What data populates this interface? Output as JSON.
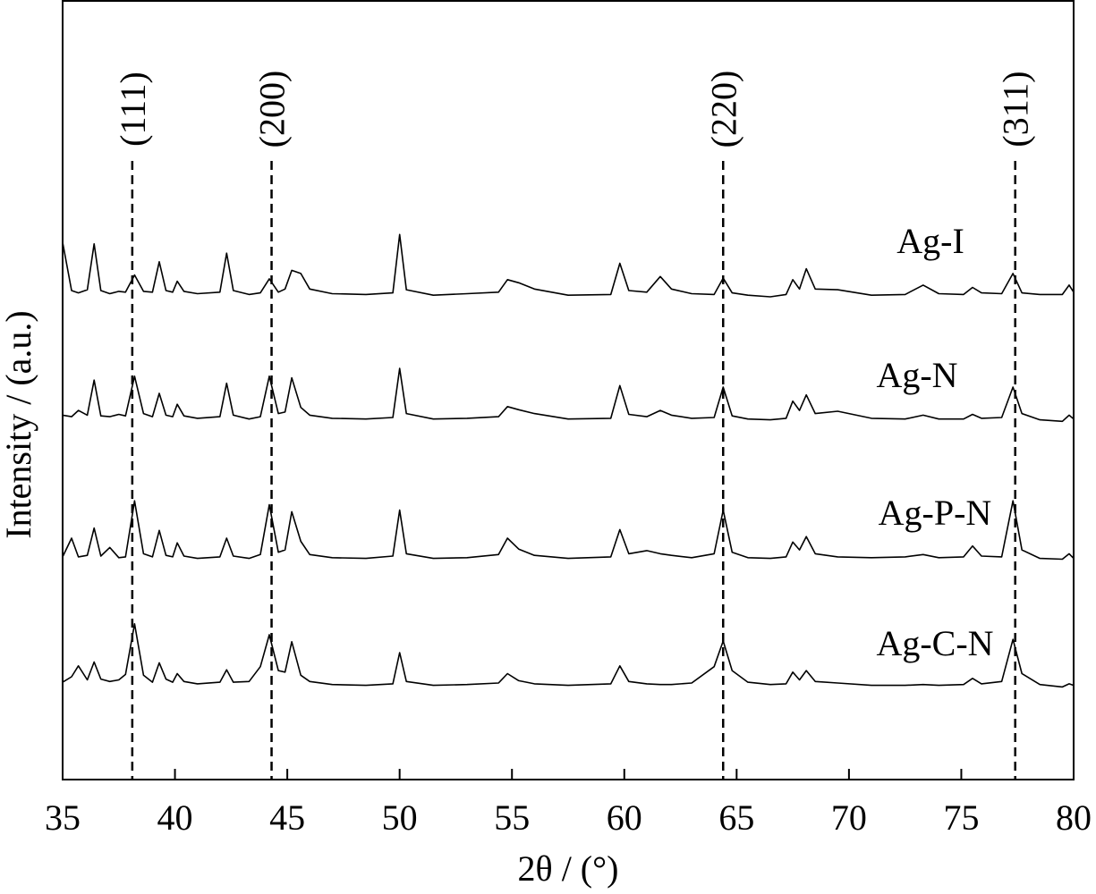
{
  "chart_data": {
    "type": "line",
    "xlabel": "2θ / (°)",
    "ylabel": "Intensity / (a.u.)",
    "xlim": [
      35,
      80
    ],
    "xticks": [
      35,
      40,
      45,
      50,
      55,
      60,
      65,
      70,
      75,
      80
    ],
    "ylim": [
      0,
      100
    ],
    "reference_lines": [
      {
        "value": 38.1,
        "label": "(111)"
      },
      {
        "value": 44.3,
        "label": "(200)"
      },
      {
        "value": 64.4,
        "label": "(220)"
      },
      {
        "value": 77.4,
        "label": "(311)"
      }
    ],
    "x": [
      35,
      35.4,
      35.7,
      36.1,
      36.4,
      36.7,
      37.1,
      37.5,
      37.8,
      38.2,
      38.6,
      39.0,
      39.3,
      39.6,
      39.9,
      40.1,
      40.4,
      41.0,
      42.0,
      42.3,
      42.6,
      43.3,
      43.8,
      44.2,
      44.6,
      44.9,
      45.2,
      45.6,
      46.0,
      47.0,
      48.5,
      49.7,
      50.0,
      50.3,
      51.5,
      53.0,
      54.4,
      54.8,
      55.3,
      56.0,
      57.5,
      59.4,
      59.8,
      60.2,
      61.0,
      61.6,
      62.1,
      63.0,
      64.0,
      64.4,
      64.8,
      65.5,
      66.5,
      67.2,
      67.5,
      67.8,
      68.1,
      68.5,
      69.5,
      71.0,
      72.5,
      73.3,
      74.0,
      75.1,
      75.5,
      75.9,
      76.8,
      77.3,
      77.7,
      78.5,
      79.5,
      79.8,
      80.0
    ],
    "series": [
      {
        "name": "Ag-I",
        "color": "#000000",
        "values": [
          69.0,
          62.8,
          62.5,
          62.9,
          68.8,
          62.8,
          62.4,
          62.7,
          62.6,
          64.8,
          62.7,
          62.6,
          66.5,
          62.8,
          62.6,
          64.0,
          62.7,
          62.4,
          62.6,
          67.6,
          62.8,
          62.3,
          62.5,
          64.3,
          62.6,
          63.0,
          65.4,
          65.0,
          63.0,
          62.4,
          62.3,
          62.5,
          70.0,
          62.9,
          62.2,
          62.4,
          62.6,
          64.2,
          63.8,
          63.0,
          62.2,
          62.3,
          66.3,
          62.8,
          62.6,
          64.6,
          63.0,
          62.4,
          62.3,
          64.4,
          62.5,
          62.2,
          62.0,
          62.3,
          64.2,
          63.0,
          65.6,
          63.0,
          62.9,
          62.2,
          62.3,
          63.5,
          62.4,
          62.3,
          63.2,
          62.5,
          62.4,
          65.0,
          62.5,
          62.3,
          62.3,
          63.5,
          62.6
        ]
      },
      {
        "name": "Ag-N",
        "color": "#000000",
        "values": [
          46.8,
          46.6,
          47.4,
          46.8,
          51.3,
          46.7,
          46.6,
          46.9,
          46.7,
          51.8,
          47.0,
          46.6,
          49.6,
          46.8,
          46.6,
          48.2,
          46.7,
          46.4,
          46.6,
          50.9,
          46.8,
          46.3,
          46.6,
          51.8,
          47.0,
          47.2,
          51.6,
          47.8,
          46.8,
          46.4,
          46.3,
          46.5,
          52.8,
          47.0,
          46.3,
          46.4,
          46.6,
          47.9,
          47.5,
          47.0,
          46.3,
          46.4,
          50.6,
          46.9,
          46.6,
          47.4,
          46.8,
          46.4,
          46.5,
          50.4,
          46.7,
          46.3,
          46.2,
          46.4,
          48.6,
          47.4,
          49.4,
          47.0,
          47.3,
          46.4,
          46.3,
          46.8,
          46.3,
          46.3,
          46.9,
          46.4,
          46.5,
          50.4,
          47.0,
          46.2,
          46.0,
          46.8,
          46.3
        ]
      },
      {
        "name": "Ag-P-N",
        "color": "#000000",
        "values": [
          28.6,
          31.0,
          28.6,
          28.8,
          32.3,
          28.7,
          29.8,
          28.5,
          28.6,
          35.8,
          29.0,
          28.6,
          32.0,
          28.8,
          28.6,
          30.4,
          28.7,
          28.4,
          28.6,
          31.0,
          28.7,
          28.4,
          28.9,
          35.3,
          29.2,
          29.5,
          34.4,
          30.6,
          28.9,
          28.5,
          28.4,
          28.7,
          34.6,
          29.0,
          28.4,
          28.5,
          28.9,
          31.0,
          29.6,
          28.8,
          28.4,
          28.6,
          32.1,
          29.0,
          29.4,
          29.0,
          28.8,
          28.5,
          29.0,
          34.6,
          29.2,
          28.5,
          28.4,
          28.6,
          30.5,
          29.5,
          31.2,
          29.0,
          28.6,
          28.5,
          28.6,
          28.9,
          28.5,
          28.6,
          30.0,
          28.7,
          28.6,
          35.8,
          29.5,
          28.4,
          28.3,
          29.0,
          28.4
        ]
      },
      {
        "name": "Ag-C-N",
        "color": "#000000",
        "values": [
          12.5,
          13.2,
          14.6,
          12.8,
          15.1,
          12.9,
          12.6,
          12.8,
          13.5,
          20.0,
          13.4,
          12.5,
          15.0,
          12.9,
          12.5,
          13.6,
          12.6,
          12.3,
          12.5,
          14.1,
          12.5,
          12.6,
          14.5,
          18.6,
          14.0,
          13.8,
          17.7,
          13.4,
          12.6,
          12.2,
          12.1,
          12.3,
          16.3,
          12.6,
          12.1,
          12.2,
          12.4,
          13.6,
          12.7,
          12.3,
          12.1,
          12.3,
          14.6,
          12.6,
          12.3,
          12.2,
          12.2,
          12.4,
          14.5,
          17.8,
          14.0,
          12.5,
          12.2,
          12.3,
          13.8,
          12.8,
          14.0,
          12.6,
          12.4,
          12.1,
          12.1,
          12.2,
          12.1,
          12.2,
          13.0,
          12.3,
          12.6,
          18.0,
          13.6,
          12.2,
          11.9,
          12.3,
          12.1
        ]
      }
    ]
  }
}
